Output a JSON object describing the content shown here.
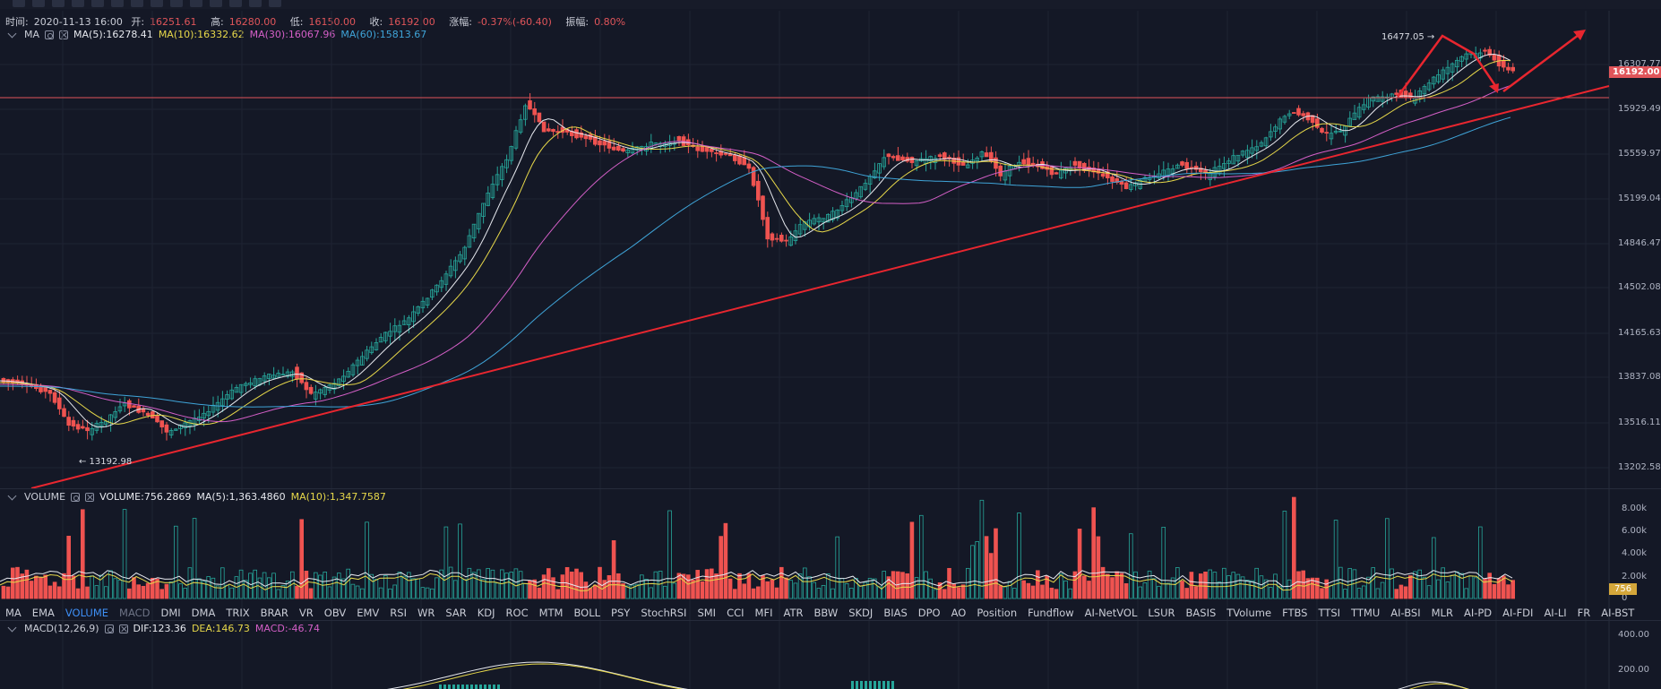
{
  "topbar": {
    "tools": 14
  },
  "info": {
    "time_label": "时间:",
    "time": "2020-11-13 16:00",
    "open_label": "开:",
    "open": "16251.61",
    "high_label": "高:",
    "high": "16280.00",
    "low_label": "低:",
    "low": "16150.00",
    "close_label": "收:",
    "close": "16192.00",
    "change_label": "涨幅:",
    "change": "-0.37%(-60.40)",
    "amp_label": "振幅:",
    "amp": "0.80%"
  },
  "ma_header": {
    "name": "MA",
    "ma5": "MA(5):16278.41",
    "ma10": "MA(10):16332.62",
    "ma30": "MA(30):16067.96",
    "ma60": "MA(60):15813.67",
    "colors": {
      "ma5": "#e6e8ee",
      "ma10": "#e7d84a",
      "ma30": "#d45fc7",
      "ma60": "#3fa4d8"
    }
  },
  "price_axis": [
    "16307.77",
    "15929.49",
    "15559.97",
    "15199.04",
    "14846.47",
    "14502.08",
    "14165.63",
    "13837.08",
    "13516.11",
    "13202.58"
  ],
  "current_price": "16192.00",
  "annotations": {
    "high": "16477.05 →",
    "low": "← 13192.98"
  },
  "volume_header": {
    "name": "VOLUME",
    "vol": "VOLUME:756.2869",
    "ma5": "MA(5):1,363.4860",
    "ma10": "MA(10):1,347.7587"
  },
  "volume_axis": [
    "8.00k",
    "6.00k",
    "4.00k",
    "2.00k",
    "0"
  ],
  "current_volume": "756",
  "tabs": [
    "MA",
    "EMA",
    "VOLUME",
    "MACD",
    "DMI",
    "DMA",
    "TRIX",
    "BRAR",
    "VR",
    "OBV",
    "EMV",
    "RSI",
    "WR",
    "SAR",
    "KDJ",
    "ROC",
    "MTM",
    "BOLL",
    "PSY",
    "StochRSI",
    "SMI",
    "CCI",
    "MFI",
    "ATR",
    "BBW",
    "SKDJ",
    "BIAS",
    "DPO",
    "AO",
    "Position",
    "Fundflow",
    "AI-NetVOL",
    "LSUR",
    "BASIS",
    "TVolume",
    "FTBS",
    "TTSI",
    "TTMU",
    "AI-BSI",
    "MLR",
    "AI-PD",
    "AI-FDI",
    "AI-LI",
    "FR",
    "AI-BST"
  ],
  "active_tab": "VOLUME",
  "macd_header": {
    "name": "MACD(12,26,9)",
    "dif": "DIF:123.36",
    "dea": "DEA:146.73",
    "macd": "MACD:-46.74"
  },
  "macd_axis": [
    "400.00",
    "200.00"
  ],
  "colors": {
    "bg": "#141826",
    "up": "#26a69a",
    "down": "#ef5350",
    "trend": "#e8262f"
  }
}
